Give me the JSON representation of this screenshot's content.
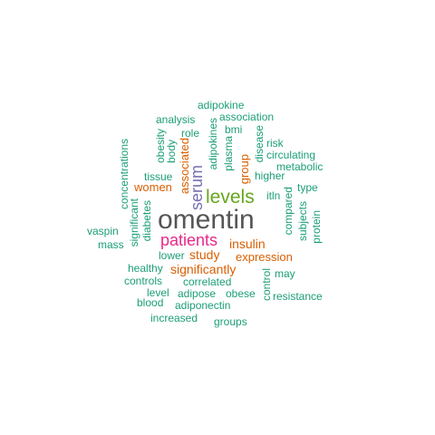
{
  "colors": {
    "teal": "#1b9e77",
    "orange": "#d95f02",
    "purple": "#7570b3",
    "magenta": "#e7298a",
    "green": "#66a61e",
    "gray": "#555555"
  },
  "words": [
    {
      "text": "omentin",
      "color": "#555555"
    },
    {
      "text": "levels",
      "color": "#66a61e"
    },
    {
      "text": "patients",
      "color": "#e7298a"
    },
    {
      "text": "serum",
      "color": "#7570b3"
    },
    {
      "text": "insulin",
      "color": "#d95f02"
    },
    {
      "text": "study",
      "color": "#d95f02"
    },
    {
      "text": "significantly",
      "color": "#d95f02"
    },
    {
      "text": "expression",
      "color": "#d95f02"
    },
    {
      "text": "associated",
      "color": "#d95f02"
    },
    {
      "text": "women",
      "color": "#d95f02"
    },
    {
      "text": "group",
      "color": "#d95f02"
    },
    {
      "text": "adipokine",
      "color": "#1b9e77"
    },
    {
      "text": "association",
      "color": "#1b9e77"
    },
    {
      "text": "analysis",
      "color": "#1b9e77"
    },
    {
      "text": "bmi",
      "color": "#1b9e77"
    },
    {
      "text": "role",
      "color": "#1b9e77"
    },
    {
      "text": "risk",
      "color": "#1b9e77"
    },
    {
      "text": "circulating",
      "color": "#1b9e77"
    },
    {
      "text": "metabolic",
      "color": "#1b9e77"
    },
    {
      "text": "higher",
      "color": "#1b9e77"
    },
    {
      "text": "type",
      "color": "#1b9e77"
    },
    {
      "text": "itln",
      "color": "#1b9e77"
    },
    {
      "text": "tissue",
      "color": "#1b9e77"
    },
    {
      "text": "vaspin",
      "color": "#1b9e77"
    },
    {
      "text": "mass",
      "color": "#1b9e77"
    },
    {
      "text": "lower",
      "color": "#1b9e77"
    },
    {
      "text": "healthy",
      "color": "#1b9e77"
    },
    {
      "text": "controls",
      "color": "#1b9e77"
    },
    {
      "text": "correlated",
      "color": "#1b9e77"
    },
    {
      "text": "may",
      "color": "#1b9e77"
    },
    {
      "text": "level",
      "color": "#1b9e77"
    },
    {
      "text": "adipose",
      "color": "#1b9e77"
    },
    {
      "text": "obese",
      "color": "#1b9e77"
    },
    {
      "text": "resistance",
      "color": "#1b9e77"
    },
    {
      "text": "blood",
      "color": "#1b9e77"
    },
    {
      "text": "adiponectin",
      "color": "#1b9e77"
    },
    {
      "text": "increased",
      "color": "#1b9e77"
    },
    {
      "text": "groups",
      "color": "#1b9e77"
    },
    {
      "text": "concentrations",
      "color": "#1b9e77"
    },
    {
      "text": "obesity",
      "color": "#1b9e77"
    },
    {
      "text": "body",
      "color": "#1b9e77"
    },
    {
      "text": "adipokines",
      "color": "#1b9e77"
    },
    {
      "text": "plasma",
      "color": "#1b9e77"
    },
    {
      "text": "disease",
      "color": "#1b9e77"
    },
    {
      "text": "significant",
      "color": "#1b9e77"
    },
    {
      "text": "diabetes",
      "color": "#1b9e77"
    },
    {
      "text": "compared",
      "color": "#1b9e77"
    },
    {
      "text": "subjects",
      "color": "#1b9e77"
    },
    {
      "text": "protein",
      "color": "#1b9e77"
    },
    {
      "text": "control",
      "color": "#1b9e77"
    }
  ]
}
